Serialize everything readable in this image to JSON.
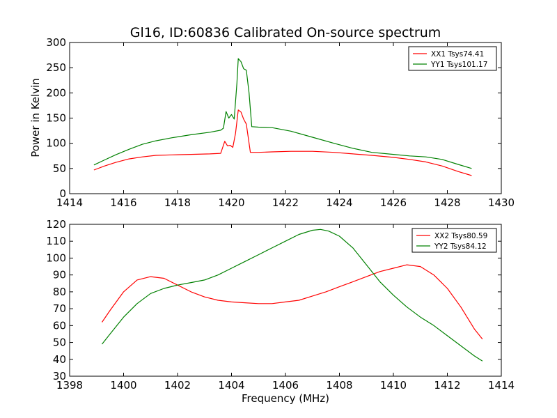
{
  "figure": {
    "title": "Gl16, ID:60836 Calibrated On-source spectrum"
  },
  "chart_data": [
    {
      "type": "line",
      "title": "Gl16, ID:60836 Calibrated On-source spectrum",
      "xlabel": "",
      "ylabel": "Power in Kelvin",
      "xlim": [
        1414,
        1430
      ],
      "ylim": [
        0,
        300
      ],
      "xticks": [
        "1414",
        "1416",
        "1418",
        "1420",
        "1422",
        "1424",
        "1426",
        "1428",
        "1430"
      ],
      "yticks": [
        "0",
        "50",
        "100",
        "150",
        "200",
        "250",
        "300"
      ],
      "grid": false,
      "legend": "top-right",
      "series": [
        {
          "name": "XX1 Tsys74.41",
          "color": "#ff0000",
          "x": [
            1414.9,
            1415.3,
            1415.7,
            1416.2,
            1416.7,
            1417.2,
            1417.8,
            1418.5,
            1419.2,
            1419.6,
            1419.75,
            1419.85,
            1419.95,
            1420.05,
            1420.15,
            1420.25,
            1420.35,
            1420.45,
            1420.55,
            1420.7,
            1421.0,
            1421.5,
            1422.2,
            1423.0,
            1423.8,
            1424.5,
            1425.2,
            1426.0,
            1426.6,
            1427.2,
            1427.8,
            1428.4,
            1428.9
          ],
          "y": [
            47,
            55,
            62,
            69,
            73,
            76,
            77,
            78,
            79,
            80,
            104,
            95,
            96,
            92,
            120,
            166,
            162,
            148,
            138,
            82,
            82,
            83,
            84,
            84,
            82,
            79,
            76,
            72,
            68,
            63,
            55,
            44,
            36
          ]
        },
        {
          "name": "YY1 Tsys101.17",
          "color": "#008000",
          "x": [
            1414.9,
            1415.3,
            1415.7,
            1416.2,
            1416.7,
            1417.2,
            1417.8,
            1418.5,
            1419.2,
            1419.6,
            1419.7,
            1419.8,
            1419.9,
            1420.0,
            1420.1,
            1420.2,
            1420.25,
            1420.35,
            1420.45,
            1420.55,
            1420.65,
            1420.75,
            1421.0,
            1421.5,
            1422.2,
            1423.0,
            1423.8,
            1424.5,
            1425.2,
            1426.0,
            1426.6,
            1427.2,
            1427.8,
            1428.4,
            1428.9
          ],
          "y": [
            57,
            67,
            77,
            88,
            98,
            105,
            111,
            117,
            122,
            126,
            130,
            163,
            150,
            157,
            148,
            220,
            268,
            262,
            248,
            245,
            200,
            133,
            132,
            131,
            124,
            112,
            100,
            90,
            82,
            78,
            75,
            73,
            68,
            58,
            50
          ]
        }
      ]
    },
    {
      "type": "line",
      "title": "",
      "xlabel": "Frequency (MHz)",
      "ylabel": "",
      "xlim": [
        1398,
        1414
      ],
      "ylim": [
        30,
        120
      ],
      "xticks": [
        "1398",
        "1400",
        "1402",
        "1404",
        "1406",
        "1408",
        "1410",
        "1412",
        "1414"
      ],
      "yticks": [
        "30",
        "40",
        "50",
        "60",
        "70",
        "80",
        "90",
        "100",
        "110",
        "120"
      ],
      "grid": false,
      "legend": "top-right",
      "series": [
        {
          "name": "XX2 Tsys80.59",
          "color": "#ff0000",
          "x": [
            1399.2,
            1399.5,
            1400.0,
            1400.5,
            1401.0,
            1401.5,
            1402.0,
            1402.5,
            1403.0,
            1403.5,
            1404.0,
            1404.5,
            1405.0,
            1405.5,
            1406.0,
            1406.5,
            1407.0,
            1407.5,
            1408.0,
            1408.5,
            1409.0,
            1409.5,
            1410.0,
            1410.5,
            1411.0,
            1411.5,
            1412.0,
            1412.5,
            1413.0,
            1413.3
          ],
          "y": [
            62,
            69,
            80,
            87,
            89,
            88,
            84,
            80,
            77,
            75,
            74,
            73.5,
            73,
            73,
            74,
            75,
            77.5,
            80,
            83,
            86,
            89,
            92,
            94,
            96,
            95,
            90,
            82,
            71,
            58,
            52
          ]
        },
        {
          "name": "YY2 Tsys84.12",
          "color": "#008000",
          "x": [
            1399.2,
            1399.5,
            1400.0,
            1400.5,
            1401.0,
            1401.5,
            1402.0,
            1402.5,
            1403.0,
            1403.5,
            1404.0,
            1404.5,
            1405.0,
            1405.5,
            1406.0,
            1406.5,
            1407.0,
            1407.3,
            1407.6,
            1408.0,
            1408.5,
            1409.0,
            1409.5,
            1410.0,
            1410.5,
            1411.0,
            1411.5,
            1412.0,
            1412.5,
            1413.0,
            1413.3
          ],
          "y": [
            49,
            55,
            65,
            73,
            79,
            82,
            84,
            85.5,
            87,
            90,
            94,
            98,
            102,
            106,
            110,
            114,
            116.5,
            117,
            116,
            113,
            106,
            96,
            86,
            78,
            71,
            65,
            60,
            54,
            48,
            42,
            39
          ]
        }
      ]
    }
  ]
}
